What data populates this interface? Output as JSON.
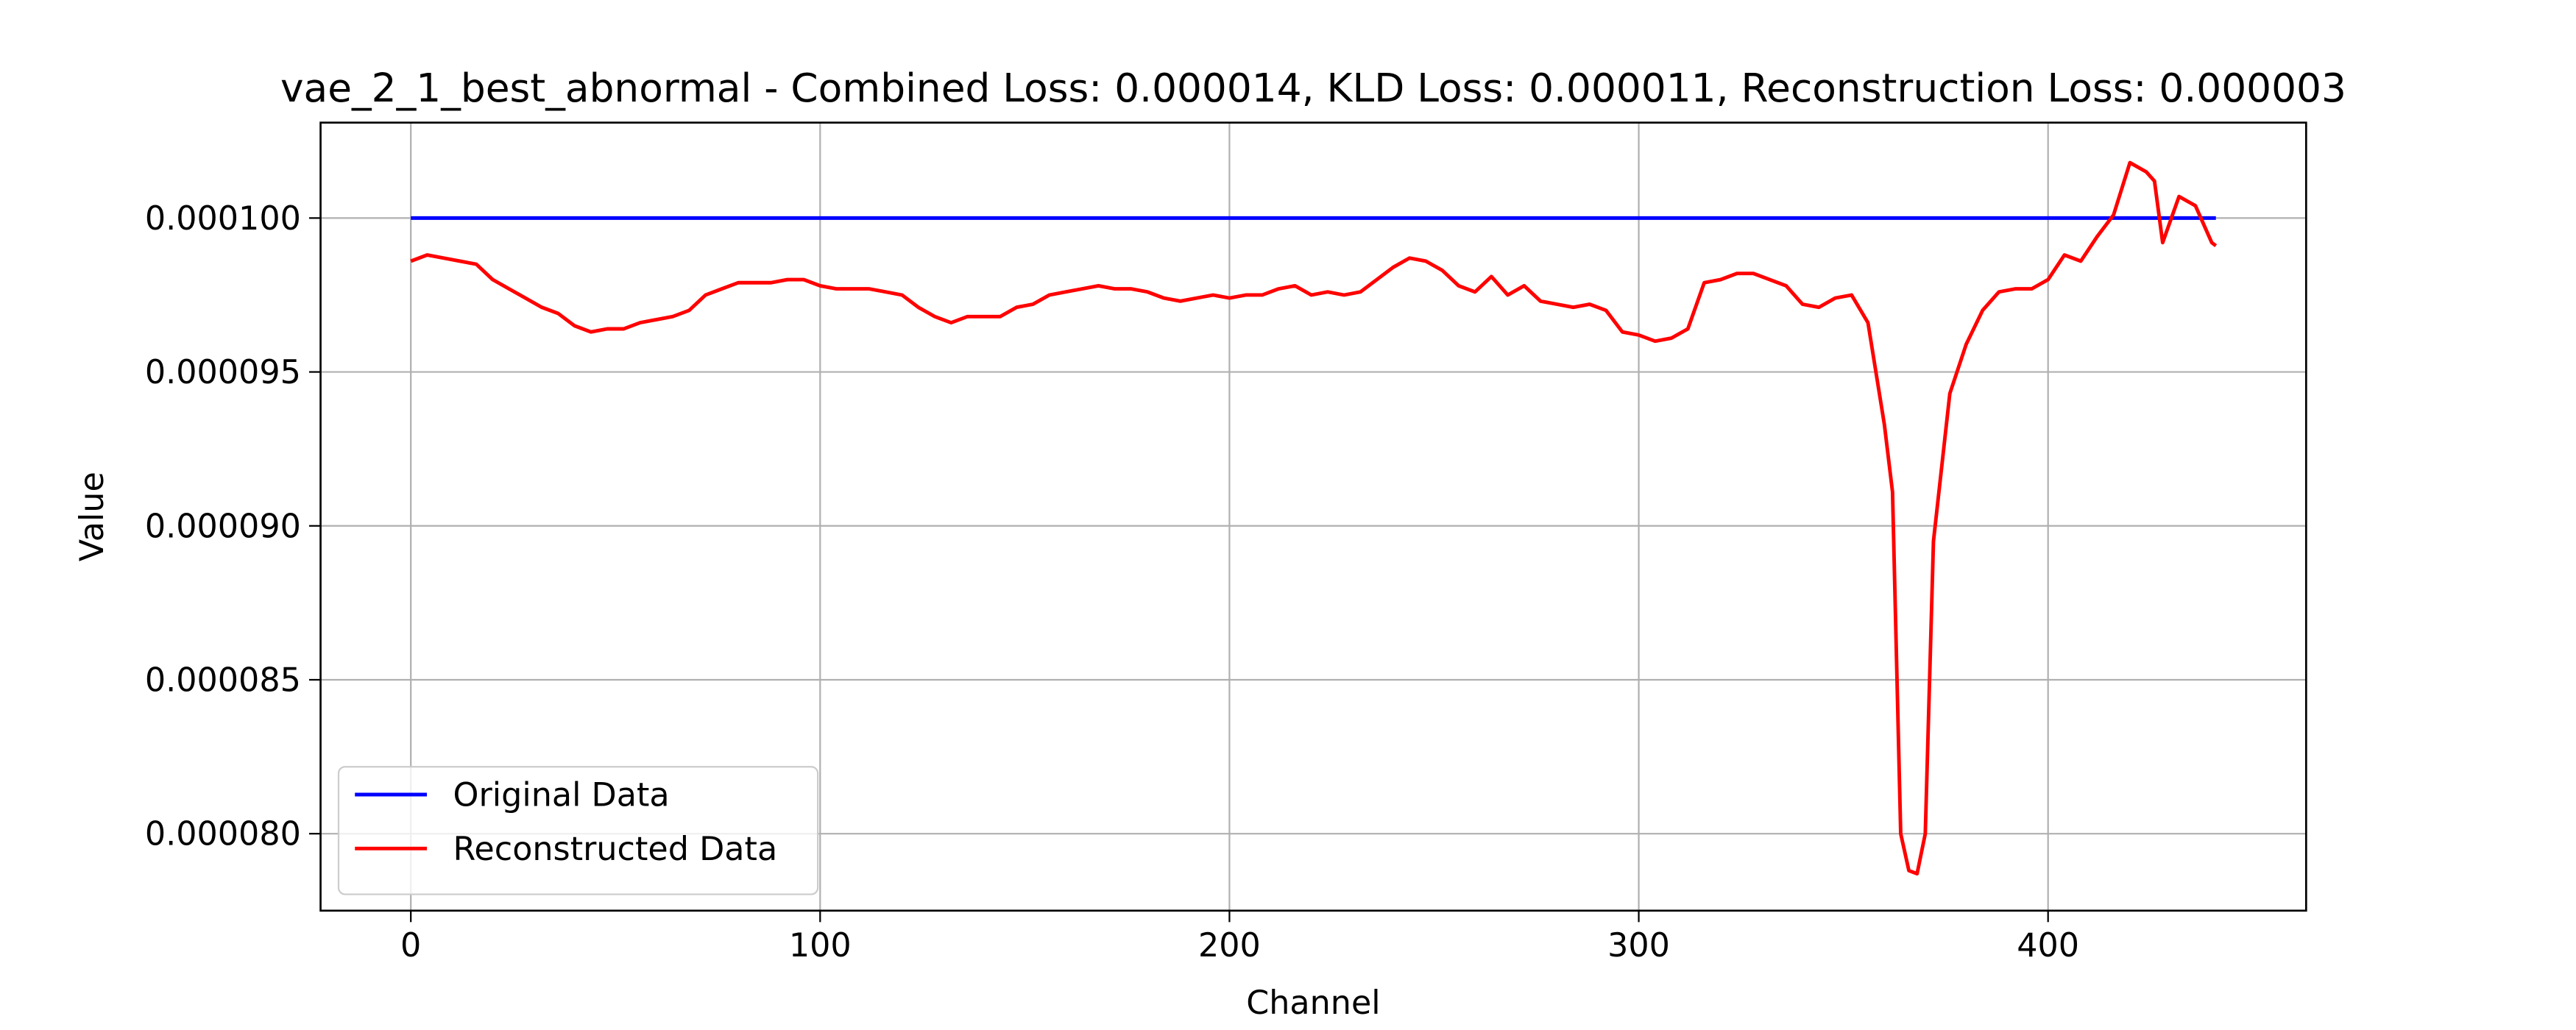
{
  "chart_data": {
    "type": "line",
    "title": "vae_2_1_best_abnormal - Combined Loss: 0.000014, KLD Loss: 0.000011, Reconstruction Loss: 0.000003",
    "xlabel": "Channel",
    "ylabel": "Value",
    "xlim": [
      -22.05,
      463.05
    ],
    "ylim": [
      7.75e-05,
      0.0001031
    ],
    "xticks": [
      0,
      100,
      200,
      300,
      400
    ],
    "yticks": [
      {
        "value": 8e-05,
        "label": "0.000080"
      },
      {
        "value": 8.5e-05,
        "label": "0.000085"
      },
      {
        "value": 9e-05,
        "label": "0.000090"
      },
      {
        "value": 9.5e-05,
        "label": "0.000095"
      },
      {
        "value": 0.0001,
        "label": "0.000100"
      }
    ],
    "grid": true,
    "legend": "lower left",
    "series": [
      {
        "name": "Original Data",
        "color": "#0000ff",
        "x": [
          0,
          441
        ],
        "values": [
          0.0001,
          0.0001
        ]
      },
      {
        "name": "Reconstructed Data",
        "color": "#ff0000",
        "x": [
          0,
          4,
          8,
          12,
          16,
          20,
          24,
          28,
          32,
          36,
          40,
          44,
          48,
          52,
          56,
          60,
          64,
          68,
          72,
          76,
          80,
          84,
          88,
          92,
          96,
          100,
          104,
          108,
          112,
          116,
          120,
          124,
          128,
          132,
          136,
          140,
          144,
          148,
          152,
          156,
          160,
          164,
          168,
          172,
          176,
          180,
          184,
          188,
          192,
          196,
          200,
          204,
          208,
          212,
          216,
          220,
          224,
          228,
          232,
          236,
          240,
          244,
          248,
          252,
          256,
          260,
          264,
          268,
          272,
          276,
          280,
          284,
          288,
          292,
          296,
          300,
          304,
          308,
          312,
          316,
          320,
          324,
          328,
          332,
          336,
          340,
          344,
          348,
          352,
          356,
          360,
          362,
          364,
          366,
          368,
          370,
          372,
          376,
          380,
          384,
          388,
          392,
          396,
          400,
          404,
          408,
          412,
          416,
          420,
          424,
          426,
          428,
          432,
          436,
          440,
          441
        ],
        "values": [
          9.86e-05,
          9.88e-05,
          9.87e-05,
          9.86e-05,
          9.85e-05,
          9.8e-05,
          9.77e-05,
          9.74e-05,
          9.71e-05,
          9.69e-05,
          9.65e-05,
          9.63e-05,
          9.64e-05,
          9.64e-05,
          9.66e-05,
          9.67e-05,
          9.68e-05,
          9.7e-05,
          9.75e-05,
          9.77e-05,
          9.79e-05,
          9.79e-05,
          9.79e-05,
          9.8e-05,
          9.8e-05,
          9.78e-05,
          9.77e-05,
          9.77e-05,
          9.77e-05,
          9.76e-05,
          9.75e-05,
          9.71e-05,
          9.68e-05,
          9.66e-05,
          9.68e-05,
          9.68e-05,
          9.68e-05,
          9.71e-05,
          9.72e-05,
          9.75e-05,
          9.76e-05,
          9.77e-05,
          9.78e-05,
          9.77e-05,
          9.77e-05,
          9.76e-05,
          9.74e-05,
          9.73e-05,
          9.74e-05,
          9.75e-05,
          9.74e-05,
          9.75e-05,
          9.75e-05,
          9.77e-05,
          9.78e-05,
          9.75e-05,
          9.76e-05,
          9.75e-05,
          9.76e-05,
          9.8e-05,
          9.84e-05,
          9.87e-05,
          9.86e-05,
          9.83e-05,
          9.78e-05,
          9.76e-05,
          9.81e-05,
          9.75e-05,
          9.78e-05,
          9.73e-05,
          9.72e-05,
          9.71e-05,
          9.72e-05,
          9.7e-05,
          9.63e-05,
          9.62e-05,
          9.6e-05,
          9.61e-05,
          9.64e-05,
          9.79e-05,
          9.8e-05,
          9.82e-05,
          9.82e-05,
          9.8e-05,
          9.78e-05,
          9.72e-05,
          9.71e-05,
          9.74e-05,
          9.75e-05,
          9.66e-05,
          9.33e-05,
          9.11e-05,
          8e-05,
          7.88e-05,
          7.87e-05,
          8e-05,
          8.95e-05,
          9.43e-05,
          9.59e-05,
          9.7e-05,
          9.76e-05,
          9.77e-05,
          9.77e-05,
          9.8e-05,
          9.88e-05,
          9.86e-05,
          9.94e-05,
          0.0001001,
          0.0001018,
          0.0001015,
          0.0001012,
          9.92e-05,
          0.0001007,
          0.0001004,
          9.92e-05,
          9.91e-05
        ]
      }
    ]
  }
}
